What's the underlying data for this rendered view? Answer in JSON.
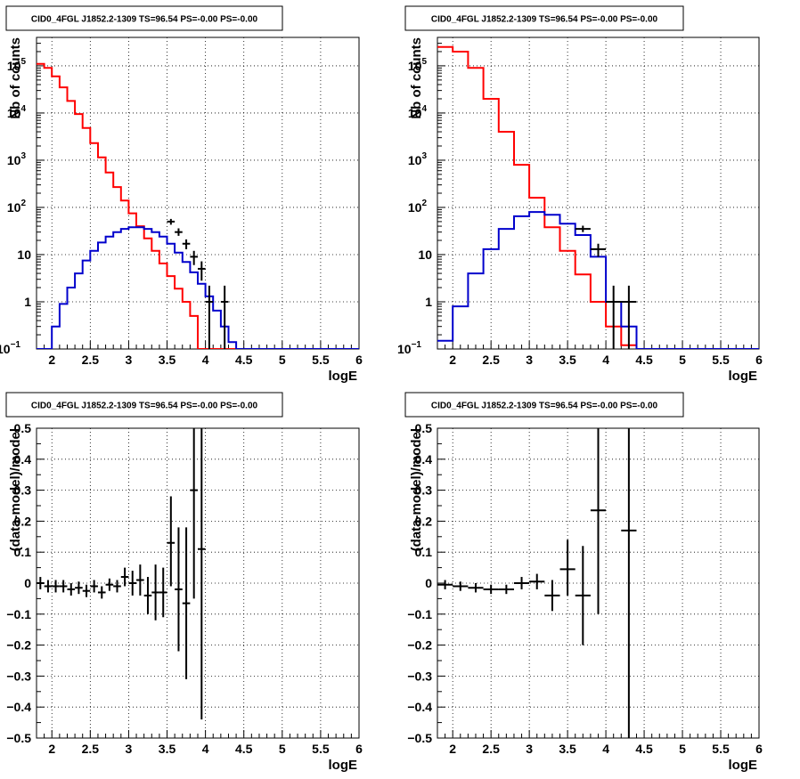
{
  "colors": {
    "data": "#000000",
    "total_model": "#ff0000",
    "source_model": "#0000cc"
  },
  "chart_data": [
    {
      "id": "top-left",
      "type": "histogram",
      "title": "CID0_4FGL J1852.2-1309 TS=96.54 PS=-0.00 PS=-0.00",
      "xlabel": "logE",
      "ylabel": "Nb of counts",
      "log_y": true,
      "grid": true,
      "xlim": [
        1.8,
        6.0
      ],
      "ylim": [
        0.1,
        400000
      ],
      "x_ticks": [
        2,
        2.5,
        3,
        3.5,
        4,
        4.5,
        5,
        5.5,
        6
      ],
      "x_tick_labels": [
        "2",
        "2.5",
        "3",
        "3.5",
        "4",
        "4.5",
        "5",
        "5.5",
        "6"
      ],
      "y_ticks": [
        0.1,
        1,
        10,
        100,
        1000,
        10000,
        100000
      ],
      "y_tick_labels": [
        [
          "10",
          "−1"
        ],
        [
          "1"
        ],
        [
          "10"
        ],
        [
          "10",
          "2"
        ],
        [
          "10",
          "3"
        ],
        [
          "10",
          "4"
        ],
        [
          "10",
          "5"
        ]
      ],
      "bin_edges": [
        1.8,
        1.9,
        2.0,
        2.1,
        2.2,
        2.3,
        2.4,
        2.5,
        2.6,
        2.7,
        2.8,
        2.9,
        3.0,
        3.1,
        3.2,
        3.3,
        3.4,
        3.5,
        3.6,
        3.7,
        3.8,
        3.9,
        4.0,
        4.1,
        4.2,
        4.3,
        4.4,
        4.5,
        4.6,
        4.7,
        4.8,
        4.9,
        5.0,
        5.1,
        5.2,
        5.3,
        5.4,
        5.5,
        5.6,
        5.7,
        5.8,
        5.9,
        6.0
      ],
      "series": [
        {
          "name": "Total model",
          "color_key": "total_model",
          "values": [
            110000,
            90000,
            60000,
            35000,
            18000,
            9500,
            4800,
            2300,
            1150,
            550,
            270,
            140,
            75,
            40,
            22,
            12,
            6.5,
            3.5,
            1.9,
            1.0,
            0.5,
            0.1,
            0.1,
            0.1,
            0.1,
            0.1,
            0.1,
            0.1,
            0.1,
            0.1,
            0.1,
            0.1,
            0.1,
            0.1,
            0.1,
            0.1,
            0.1,
            0.1,
            0.1,
            0.1,
            0.1,
            0.1
          ]
        },
        {
          "name": "Source model",
          "color_key": "source_model",
          "values": [
            0.1,
            0.1,
            0.3,
            0.9,
            2.0,
            4.0,
            7.5,
            12.0,
            18.0,
            24.0,
            30.0,
            35.0,
            38.0,
            38.0,
            35.0,
            30.0,
            24.0,
            17.0,
            11.0,
            7.0,
            4.2,
            2.4,
            1.3,
            0.65,
            0.3,
            0.14,
            0.1,
            0.1,
            0.1,
            0.1,
            0.1,
            0.1,
            0.1,
            0.1,
            0.1,
            0.1,
            0.1,
            0.1,
            0.1,
            0.1,
            0.1,
            0.1
          ]
        }
      ],
      "points": [
        {
          "x": 3.55,
          "y": 50,
          "ylo": 43,
          "yhi": 57,
          "xerr": 0.05
        },
        {
          "x": 3.65,
          "y": 30,
          "ylo": 25,
          "yhi": 36,
          "xerr": 0.05
        },
        {
          "x": 3.75,
          "y": 17,
          "ylo": 13,
          "yhi": 21,
          "xerr": 0.05
        },
        {
          "x": 3.85,
          "y": 9,
          "ylo": 6,
          "yhi": 12,
          "xerr": 0.05
        },
        {
          "x": 3.95,
          "y": 5,
          "ylo": 2.8,
          "yhi": 7.2,
          "xerr": 0.05
        },
        {
          "x": 4.05,
          "y": 1,
          "ylo": 0.1,
          "yhi": 2.2,
          "xerr": 0.05
        },
        {
          "x": 4.25,
          "y": 1,
          "ylo": 0.1,
          "yhi": 2.2,
          "xerr": 0.05
        }
      ]
    },
    {
      "id": "top-right",
      "type": "histogram",
      "title": "CID0_4FGL J1852.2-1309 TS=96.54 PS=-0.00 PS=-0.00",
      "xlabel": "logE",
      "ylabel": "Nb of counts",
      "log_y": true,
      "grid": true,
      "xlim": [
        1.8,
        6.0
      ],
      "ylim": [
        0.1,
        400000
      ],
      "x_ticks": [
        2,
        2.5,
        3,
        3.5,
        4,
        4.5,
        5,
        5.5,
        6
      ],
      "x_tick_labels": [
        "2",
        "2.5",
        "3",
        "3.5",
        "4",
        "4.5",
        "5",
        "5.5",
        "6"
      ],
      "y_ticks": [
        0.1,
        1,
        10,
        100,
        1000,
        10000,
        100000
      ],
      "y_tick_labels": [
        [
          "10",
          "−1"
        ],
        [
          "1"
        ],
        [
          "10"
        ],
        [
          "10",
          "2"
        ],
        [
          "10",
          "3"
        ],
        [
          "10",
          "4"
        ],
        [
          "10",
          "5"
        ]
      ],
      "bin_edges": [
        1.8,
        2.0,
        2.2,
        2.4,
        2.6,
        2.8,
        3.0,
        3.2,
        3.4,
        3.6,
        3.8,
        4.0,
        4.2,
        4.4,
        4.6,
        4.8,
        5.0,
        5.2,
        5.4,
        5.6,
        5.8,
        6.0
      ],
      "series": [
        {
          "name": "Total model",
          "color_key": "total_model",
          "values": [
            250000,
            200000,
            90000,
            20000,
            4000,
            800,
            160,
            38,
            12,
            3.8,
            1.0,
            0.3,
            0.12,
            0.1,
            0.1,
            0.1,
            0.1,
            0.1,
            0.1,
            0.1,
            0.1
          ]
        },
        {
          "name": "Source model",
          "color_key": "source_model",
          "values": [
            0.15,
            0.8,
            4.0,
            13.0,
            35.0,
            65.0,
            80.0,
            70.0,
            45.0,
            26.0,
            9.0,
            1.0,
            0.3,
            0.1,
            0.1,
            0.1,
            0.1,
            0.1,
            0.1,
            0.1,
            0.1
          ]
        }
      ],
      "points": [
        {
          "x": 3.7,
          "y": 35,
          "ylo": 30,
          "yhi": 41,
          "xerr": 0.1
        },
        {
          "x": 3.9,
          "y": 13,
          "ylo": 9,
          "yhi": 17,
          "xerr": 0.1
        },
        {
          "x": 4.1,
          "y": 1,
          "ylo": 0.1,
          "yhi": 2.2,
          "xerr": 0.1
        },
        {
          "x": 4.3,
          "y": 1,
          "ylo": 0.1,
          "yhi": 2.2,
          "xerr": 0.1
        }
      ]
    },
    {
      "id": "bottom-left",
      "type": "scatter",
      "title": "CID0_4FGL J1852.2-1309 TS=96.54 PS=-0.00 PS=-0.00",
      "xlabel": "logE",
      "ylabel": "(data-model)/model",
      "log_y": false,
      "grid": true,
      "xlim": [
        1.8,
        6.0
      ],
      "ylim": [
        -0.5,
        0.5
      ],
      "x_ticks": [
        2,
        2.5,
        3,
        3.5,
        4,
        4.5,
        5,
        5.5,
        6
      ],
      "x_tick_labels": [
        "2",
        "2.5",
        "3",
        "3.5",
        "4",
        "4.5",
        "5",
        "5.5",
        "6"
      ],
      "y_ticks": [
        -0.5,
        -0.4,
        -0.3,
        -0.2,
        -0.1,
        0,
        0.1,
        0.2,
        0.3,
        0.4,
        0.5
      ],
      "y_tick_labels": [
        [
          "−0.5"
        ],
        [
          "−0.4"
        ],
        [
          "−0.3"
        ],
        [
          "−0.2"
        ],
        [
          "−0.1"
        ],
        [
          "0"
        ],
        [
          "0.1"
        ],
        [
          "0.2"
        ],
        [
          "0.3"
        ],
        [
          "0.4"
        ],
        [
          "0.5"
        ]
      ],
      "points": [
        {
          "x": 1.85,
          "y": 0.0,
          "ylo": -0.02,
          "yhi": 0.02,
          "xerr": 0.05
        },
        {
          "x": 1.95,
          "y": -0.01,
          "ylo": -0.03,
          "yhi": 0.01,
          "xerr": 0.05
        },
        {
          "x": 2.05,
          "y": -0.01,
          "ylo": -0.03,
          "yhi": 0.01,
          "xerr": 0.05
        },
        {
          "x": 2.15,
          "y": -0.01,
          "ylo": -0.03,
          "yhi": 0.01,
          "xerr": 0.05
        },
        {
          "x": 2.25,
          "y": -0.02,
          "ylo": -0.04,
          "yhi": 0.0,
          "xerr": 0.05
        },
        {
          "x": 2.35,
          "y": -0.015,
          "ylo": -0.035,
          "yhi": 0.005,
          "xerr": 0.05
        },
        {
          "x": 2.45,
          "y": -0.025,
          "ylo": -0.045,
          "yhi": -0.005,
          "xerr": 0.05
        },
        {
          "x": 2.55,
          "y": -0.01,
          "ylo": -0.03,
          "yhi": 0.01,
          "xerr": 0.05
        },
        {
          "x": 2.65,
          "y": -0.03,
          "ylo": -0.05,
          "yhi": -0.01,
          "xerr": 0.05
        },
        {
          "x": 2.75,
          "y": -0.005,
          "ylo": -0.025,
          "yhi": 0.015,
          "xerr": 0.05
        },
        {
          "x": 2.85,
          "y": -0.01,
          "ylo": -0.03,
          "yhi": 0.01,
          "xerr": 0.05
        },
        {
          "x": 2.95,
          "y": 0.02,
          "ylo": -0.01,
          "yhi": 0.05,
          "xerr": 0.05
        },
        {
          "x": 3.05,
          "y": 0.0,
          "ylo": -0.04,
          "yhi": 0.04,
          "xerr": 0.05
        },
        {
          "x": 3.15,
          "y": 0.01,
          "ylo": -0.04,
          "yhi": 0.06,
          "xerr": 0.05
        },
        {
          "x": 3.25,
          "y": -0.04,
          "ylo": -0.1,
          "yhi": 0.02,
          "xerr": 0.05
        },
        {
          "x": 3.35,
          "y": -0.03,
          "ylo": -0.12,
          "yhi": 0.06,
          "xerr": 0.05
        },
        {
          "x": 3.45,
          "y": -0.03,
          "ylo": -0.11,
          "yhi": 0.05,
          "xerr": 0.05
        },
        {
          "x": 3.55,
          "y": 0.13,
          "ylo": -0.01,
          "yhi": 0.28,
          "xerr": 0.05
        },
        {
          "x": 3.65,
          "y": -0.02,
          "ylo": -0.22,
          "yhi": 0.18,
          "xerr": 0.05
        },
        {
          "x": 3.75,
          "y": -0.065,
          "ylo": -0.31,
          "yhi": 0.18,
          "xerr": 0.05
        },
        {
          "x": 3.85,
          "y": 0.3,
          "ylo": -0.05,
          "yhi": 0.5,
          "xerr": 0.05
        },
        {
          "x": 3.95,
          "y": 0.11,
          "ylo": -0.44,
          "yhi": 0.5,
          "xerr": 0.05
        }
      ]
    },
    {
      "id": "bottom-right",
      "type": "scatter",
      "title": "CID0_4FGL J1852.2-1309 TS=96.54 PS=-0.00 PS=-0.00",
      "xlabel": "logE",
      "ylabel": "(data-model)/model",
      "log_y": false,
      "grid": true,
      "xlim": [
        1.8,
        6.0
      ],
      "ylim": [
        -0.5,
        0.5
      ],
      "x_ticks": [
        2,
        2.5,
        3,
        3.5,
        4,
        4.5,
        5,
        5.5,
        6
      ],
      "x_tick_labels": [
        "2",
        "2.5",
        "3",
        "3.5",
        "4",
        "4.5",
        "5",
        "5.5",
        "6"
      ],
      "y_ticks": [
        -0.5,
        -0.4,
        -0.3,
        -0.2,
        -0.1,
        0,
        0.1,
        0.2,
        0.3,
        0.4,
        0.5
      ],
      "y_tick_labels": [
        [
          "−0.5"
        ],
        [
          "−0.4"
        ],
        [
          "−0.3"
        ],
        [
          "−0.2"
        ],
        [
          "−0.1"
        ],
        [
          "0"
        ],
        [
          "0.1"
        ],
        [
          "0.2"
        ],
        [
          "0.3"
        ],
        [
          "0.4"
        ],
        [
          "0.5"
        ]
      ],
      "points": [
        {
          "x": 1.9,
          "y": -0.005,
          "ylo": -0.02,
          "yhi": 0.01,
          "xerr": 0.1
        },
        {
          "x": 2.1,
          "y": -0.01,
          "ylo": -0.025,
          "yhi": 0.005,
          "xerr": 0.1
        },
        {
          "x": 2.3,
          "y": -0.015,
          "ylo": -0.03,
          "yhi": 0.0,
          "xerr": 0.1
        },
        {
          "x": 2.5,
          "y": -0.02,
          "ylo": -0.035,
          "yhi": -0.005,
          "xerr": 0.1
        },
        {
          "x": 2.7,
          "y": -0.02,
          "ylo": -0.035,
          "yhi": -0.005,
          "xerr": 0.1
        },
        {
          "x": 2.9,
          "y": 0.0,
          "ylo": -0.02,
          "yhi": 0.02,
          "xerr": 0.1
        },
        {
          "x": 3.1,
          "y": 0.005,
          "ylo": -0.02,
          "yhi": 0.03,
          "xerr": 0.1
        },
        {
          "x": 3.3,
          "y": -0.04,
          "ylo": -0.09,
          "yhi": 0.01,
          "xerr": 0.1
        },
        {
          "x": 3.5,
          "y": 0.045,
          "ylo": -0.04,
          "yhi": 0.14,
          "xerr": 0.1
        },
        {
          "x": 3.7,
          "y": -0.04,
          "ylo": -0.2,
          "yhi": 0.12,
          "xerr": 0.1
        },
        {
          "x": 3.9,
          "y": 0.235,
          "ylo": -0.1,
          "yhi": 0.5,
          "xerr": 0.1
        },
        {
          "x": 4.3,
          "y": 0.17,
          "ylo": -0.5,
          "yhi": 0.5,
          "xerr": 0.1
        }
      ]
    }
  ]
}
